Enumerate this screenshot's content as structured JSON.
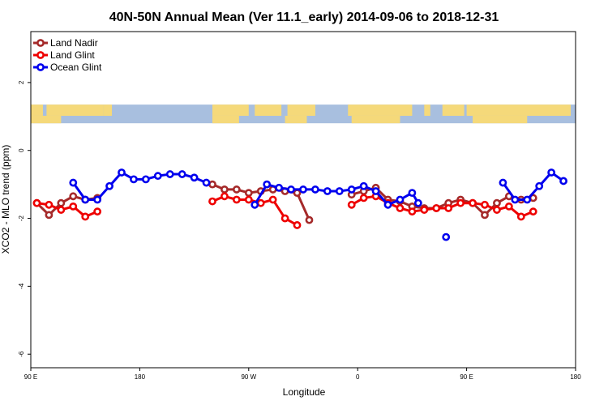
{
  "chart_data": {
    "type": "line",
    "title": "40N-50N Annual Mean (Ver 11.1_early)   2014-09-06 to 2018-12-31",
    "xlabel": "Longitude",
    "ylabel": "XCO2 - MLO trend (ppm)",
    "x_tick_values": [
      90,
      180,
      270,
      360,
      450,
      540
    ],
    "x_tick_labels": [
      "90 E",
      "180",
      "90 W",
      "0",
      "90 E",
      "180"
    ],
    "y_tick_values": [
      -6,
      -4,
      -2,
      0,
      2
    ],
    "y_tick_labels": [
      "-6",
      "-4",
      "-2",
      "0",
      "2"
    ],
    "xlim": [
      90,
      540
    ],
    "ylim": [
      -6.4,
      3.5
    ],
    "grid": false,
    "legend_position": "top-left",
    "map_strip": {
      "ymin": 0.8,
      "ymax": 1.35,
      "land_color": "#f5d97a",
      "ocean_color": "#a8bfdf"
    },
    "series": [
      {
        "name": "Land Nadir",
        "color": "#a52a2a",
        "segments": [
          [
            [
              95,
              -1.55
            ],
            [
              105,
              -1.9
            ],
            [
              115,
              -1.55
            ],
            [
              125,
              -1.35
            ],
            [
              135,
              -1.45
            ],
            [
              145,
              -1.4
            ]
          ],
          [
            [
              240,
              -1.0
            ],
            [
              250,
              -1.15
            ],
            [
              260,
              -1.15
            ],
            [
              270,
              -1.25
            ],
            [
              280,
              -1.2
            ],
            [
              290,
              -1.15
            ],
            [
              300,
              -1.2
            ],
            [
              310,
              -1.25
            ],
            [
              320,
              -2.05
            ]
          ],
          [
            [
              355,
              -1.3
            ],
            [
              365,
              -1.2
            ],
            [
              375,
              -1.1
            ],
            [
              385,
              -1.45
            ],
            [
              395,
              -1.5
            ],
            [
              405,
              -1.65
            ],
            [
              415,
              -1.7
            ],
            [
              425,
              -1.7
            ],
            [
              435,
              -1.55
            ],
            [
              445,
              -1.45
            ],
            [
              455,
              -1.55
            ],
            [
              465,
              -1.9
            ],
            [
              475,
              -1.55
            ],
            [
              485,
              -1.35
            ],
            [
              495,
              -1.45
            ],
            [
              505,
              -1.4
            ]
          ]
        ]
      },
      {
        "name": "Land Glint",
        "color": "#ee0000",
        "segments": [
          [
            [
              95,
              -1.55
            ],
            [
              105,
              -1.6
            ],
            [
              115,
              -1.75
            ],
            [
              125,
              -1.65
            ],
            [
              135,
              -1.95
            ],
            [
              145,
              -1.8
            ]
          ],
          [
            [
              240,
              -1.5
            ],
            [
              250,
              -1.35
            ],
            [
              260,
              -1.45
            ],
            [
              270,
              -1.45
            ],
            [
              280,
              -1.55
            ],
            [
              290,
              -1.45
            ],
            [
              300,
              -2.0
            ],
            [
              310,
              -2.2
            ]
          ],
          [
            [
              355,
              -1.6
            ],
            [
              365,
              -1.4
            ],
            [
              375,
              -1.35
            ],
            [
              385,
              -1.55
            ],
            [
              395,
              -1.7
            ],
            [
              405,
              -1.8
            ],
            [
              415,
              -1.75
            ],
            [
              425,
              -1.7
            ],
            [
              435,
              -1.7
            ],
            [
              445,
              -1.55
            ],
            [
              455,
              -1.55
            ],
            [
              465,
              -1.6
            ],
            [
              475,
              -1.75
            ],
            [
              485,
              -1.65
            ],
            [
              495,
              -1.95
            ],
            [
              505,
              -1.8
            ]
          ]
        ]
      },
      {
        "name": "Ocean Glint",
        "color": "#0000ee",
        "segments": [
          [
            [
              125,
              -0.95
            ],
            [
              135,
              -1.45
            ],
            [
              145,
              -1.45
            ],
            [
              155,
              -1.05
            ],
            [
              165,
              -0.65
            ],
            [
              175,
              -0.85
            ],
            [
              185,
              -0.85
            ],
            [
              195,
              -0.75
            ],
            [
              205,
              -0.7
            ],
            [
              215,
              -0.7
            ],
            [
              225,
              -0.8
            ],
            [
              235,
              -0.95
            ]
          ],
          [
            [
              275,
              -1.6
            ],
            [
              285,
              -1.0
            ],
            [
              295,
              -1.1
            ],
            [
              305,
              -1.15
            ],
            [
              315,
              -1.15
            ],
            [
              325,
              -1.15
            ],
            [
              335,
              -1.2
            ],
            [
              345,
              -1.2
            ],
            [
              355,
              -1.15
            ],
            [
              365,
              -1.05
            ],
            [
              375,
              -1.2
            ],
            [
              385,
              -1.6
            ],
            [
              395,
              -1.45
            ],
            [
              405,
              -1.25
            ],
            [
              410,
              -1.55
            ]
          ],
          [
            [
              433,
              -2.55
            ]
          ],
          [
            [
              480,
              -0.95
            ],
            [
              490,
              -1.45
            ],
            [
              500,
              -1.45
            ],
            [
              510,
              -1.05
            ],
            [
              520,
              -0.65
            ],
            [
              530,
              -0.9
            ]
          ]
        ]
      }
    ]
  }
}
